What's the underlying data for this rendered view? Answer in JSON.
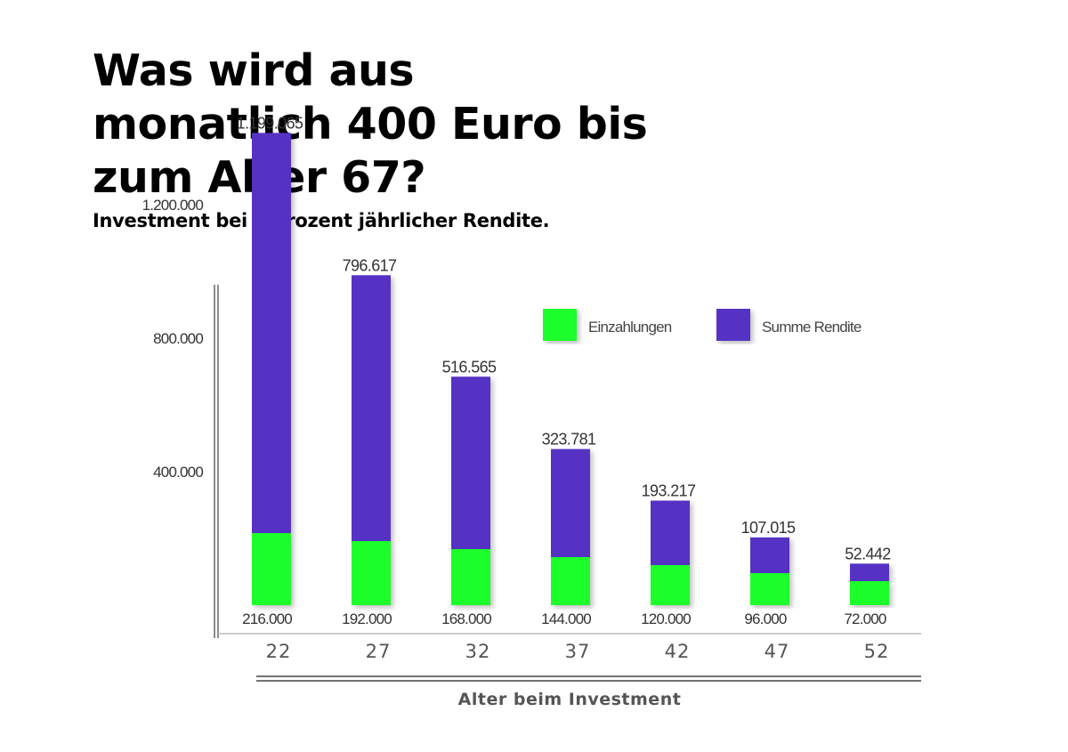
{
  "header": {
    "title_lines": [
      "Was wird aus",
      "monatlich 400 Euro bis",
      "zum Alter 67?"
    ],
    "subtitle": "Investment bei 7 Prozent jährlicher Rendite."
  },
  "colors": {
    "deposits": "#1aff2b",
    "returns": "#5533c4",
    "axis": "#666666"
  },
  "chart_data": {
    "type": "bar",
    "stacked": true,
    "categories": [
      "22",
      "27",
      "32",
      "37",
      "42",
      "47",
      "52"
    ],
    "series": [
      {
        "name": "Einzahlungen",
        "values": [
          216000,
          192000,
          168000,
          144000,
          120000,
          96000,
          72000
        ],
        "labels": [
          "216.000",
          "192.000",
          "168.000",
          "144.000",
          "120.000",
          "96.000",
          "72.000"
        ]
      },
      {
        "name": "Summe Rendite",
        "values": [
          1199065,
          796617,
          516565,
          323781,
          193217,
          107015,
          52442
        ],
        "labels": [
          "1.199.065",
          "796.617",
          "516.565",
          "323.781",
          "193.217",
          "107.015",
          "52.442"
        ]
      }
    ],
    "yticks": [
      400000,
      800000,
      1200000
    ],
    "ytick_labels": [
      "400.000",
      "800.000",
      "1.200.000"
    ],
    "ylim": [
      0,
      1500000
    ],
    "xlabel": "Alter beim Investment",
    "ylabel": "",
    "legend_position": "top-right",
    "grid": false
  }
}
